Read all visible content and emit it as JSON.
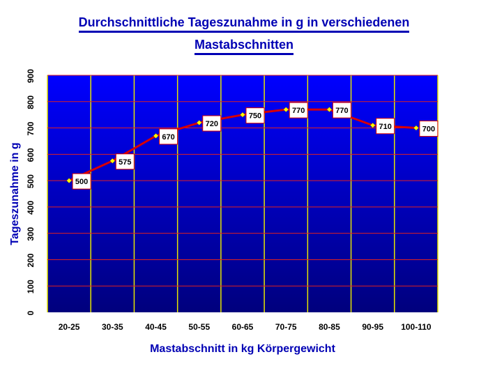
{
  "title_lines": [
    "Durchschnittliche Tageszunahme in g in verschiedenen",
    "Mastabschnitten"
  ],
  "chart_data": {
    "type": "line",
    "title": "Durchschnittliche Tageszunahme in g in verschiedenen Mastabschnitten",
    "xlabel": "Mastabschnitt in kg Körpergewicht",
    "ylabel": "Tageszunahme in g",
    "categories": [
      "20-25",
      "30-35",
      "40-45",
      "50-55",
      "60-65",
      "70-75",
      "80-85",
      "90-95",
      "100-110"
    ],
    "series": [
      {
        "values": [
          500,
          575,
          670,
          720,
          750,
          770,
          770,
          710,
          700
        ],
        "labels": [
          "500",
          "575",
          "670",
          "720",
          "750",
          "770",
          "770",
          "710",
          "700"
        ],
        "color": "#d90000",
        "marker_color": "#ffff00"
      }
    ],
    "ylim": [
      0,
      900
    ],
    "yticks": [
      0,
      100,
      200,
      300,
      400,
      500,
      600,
      700,
      800,
      900
    ],
    "grid": true,
    "colors": {
      "plot_top": "#0000ff",
      "plot_bottom": "#00007d",
      "gridline": "#e02020",
      "vertical_lines": "#e6e600",
      "title": "#0000b4"
    }
  }
}
